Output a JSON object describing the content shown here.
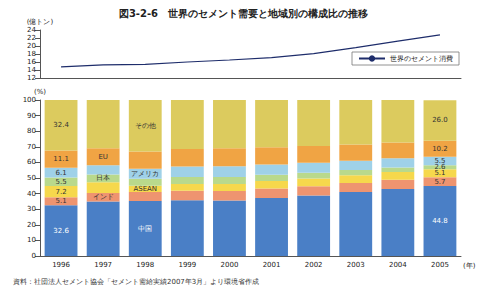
{
  "chart_data": [
    {
      "type": "line",
      "title": "図3-2-6　世界のセメント需要と地域別の構成比の推移",
      "categories": [
        "1996",
        "1997",
        "1998",
        "1999",
        "2000",
        "2001",
        "2002",
        "2003",
        "2004",
        "2005"
      ],
      "ylabel": "(億トン)",
      "ylim": [
        12,
        24
      ],
      "yticks": [
        12,
        14,
        16,
        18,
        20,
        22,
        24
      ],
      "tick_labels": "y",
      "grid": false,
      "legend": "lower right",
      "series": [
        {
          "name": "世界のセメント消費",
          "color": "#1e2d6b",
          "values": [
            14.8,
            15.3,
            15.4,
            16.0,
            16.5,
            17.1,
            18.1,
            19.6,
            21.2,
            22.8
          ]
        }
      ]
    },
    {
      "type": "bar",
      "stacked": true,
      "categories": [
        "1996",
        "1997",
        "1998",
        "1999",
        "2000",
        "2001",
        "2002",
        "2003",
        "2004",
        "2005"
      ],
      "xlabel": "(年)",
      "ylabel": "(%)",
      "ylim": [
        0,
        100
      ],
      "yticks": [
        0,
        10,
        20,
        30,
        40,
        50,
        60,
        70,
        80,
        90,
        100
      ],
      "grid": false,
      "note": "資料：社団法人セメント協会「セメント需給実績2007年3月」より環境省作成",
      "series": [
        {
          "name": "中国",
          "color": "#4a7fc6",
          "values": [
            32.6,
            35.0,
            35.2,
            35.8,
            35.6,
            37.2,
            38.8,
            41.0,
            43.0,
            44.8
          ],
          "value_labels": [
            "32.6",
            null,
            null,
            null,
            null,
            null,
            null,
            null,
            null,
            "44.8"
          ]
        },
        {
          "name": "インド",
          "color": "#ee9470",
          "values": [
            5.1,
            5.4,
            5.8,
            6.0,
            6.0,
            6.0,
            5.9,
            5.8,
            5.8,
            5.7
          ],
          "value_labels": [
            "5.1",
            null,
            null,
            null,
            null,
            null,
            null,
            null,
            null,
            "5.7"
          ]
        },
        {
          "name": "ASEAN",
          "color": "#f6d84c",
          "values": [
            7.2,
            6.8,
            4.0,
            4.3,
            4.5,
            4.8,
            5.0,
            5.0,
            5.1,
            5.1
          ],
          "value_labels": [
            "7.2",
            null,
            null,
            null,
            null,
            null,
            null,
            null,
            null,
            "5.1"
          ]
        },
        {
          "name": "日本",
          "color": "#b9d98c",
          "values": [
            5.5,
            5.0,
            4.5,
            4.5,
            4.6,
            4.1,
            3.7,
            3.3,
            2.9,
            2.6
          ],
          "value_labels": [
            "5.5",
            null,
            null,
            null,
            null,
            null,
            null,
            null,
            null,
            "2.6"
          ]
        },
        {
          "name": "アメリカ",
          "color": "#9fd1e8",
          "values": [
            6.1,
            6.0,
            6.5,
            6.8,
            6.9,
            6.6,
            6.3,
            6.0,
            5.8,
            5.5
          ],
          "value_labels": [
            "6.1",
            null,
            null,
            null,
            null,
            null,
            null,
            null,
            null,
            "5.5"
          ]
        },
        {
          "name": "EU",
          "color": "#f0a444",
          "values": [
            11.1,
            10.8,
            11.0,
            11.2,
            11.5,
            11.0,
            10.8,
            10.3,
            10.2,
            10.2
          ],
          "value_labels": [
            "11.1",
            null,
            null,
            null,
            null,
            null,
            null,
            null,
            null,
            "10.2"
          ]
        },
        {
          "name": "その他",
          "color": "#dccb5e",
          "values": [
            32.4,
            31.0,
            33.0,
            31.4,
            30.9,
            30.3,
            29.5,
            28.6,
            27.2,
            26.0
          ],
          "value_labels": [
            "32.4",
            null,
            null,
            null,
            null,
            null,
            null,
            null,
            null,
            "26.0"
          ]
        }
      ]
    }
  ]
}
